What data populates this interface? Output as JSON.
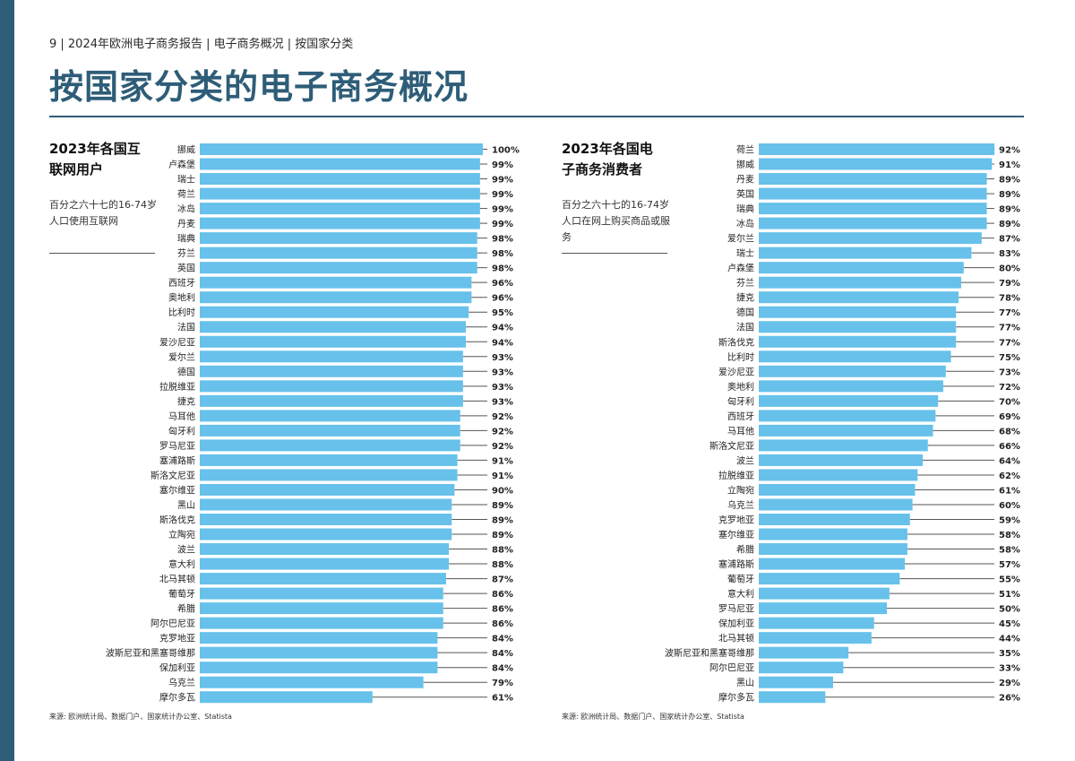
{
  "breadcrumb": "9 | 2024年欧洲电子商务报告 | 电子商务概况 | 按国家分类",
  "title": "按国家分类的电子商务概况",
  "colors": {
    "accent": "#2e5d78",
    "bar": "#67c1ea",
    "leader": "#555555"
  },
  "panels": [
    {
      "heading_line1": "2023年各国互",
      "heading_line2": "联网用户",
      "description": "百分之六十七的16-74岁人口使用互联网",
      "source": "来源: 欧洲统计局、数据门户、国家统计办公室、Statista"
    },
    {
      "heading_line1": "2023年各国电",
      "heading_line2": "子商务消费者",
      "description": "百分之六十七的16-74岁人口在网上购买商品或服务",
      "source": "来源: 欧洲统计局、数据门户、国家统计办公室、Statista"
    }
  ],
  "chart_data": [
    {
      "type": "bar",
      "orientation": "horizontal",
      "title": "2023年各国互联网用户",
      "value_suffix": "%",
      "xlim": [
        0,
        100
      ],
      "categories": [
        "挪威",
        "卢森堡",
        "瑞士",
        "荷兰",
        "冰岛",
        "丹麦",
        "瑞典",
        "芬兰",
        "英国",
        "西班牙",
        "奥地利",
        "比利时",
        "法国",
        "爱沙尼亚",
        "爱尔兰",
        "德国",
        "拉脱维亚",
        "捷克",
        "马耳他",
        "匈牙利",
        "罗马尼亚",
        "塞浦路斯",
        "斯洛文尼亚",
        "塞尔维亚",
        "黑山",
        "斯洛伐克",
        "立陶宛",
        "波兰",
        "意大利",
        "北马其顿",
        "葡萄牙",
        "希腊",
        "阿尔巴尼亚",
        "克罗地亚",
        "波斯尼亚和黑塞哥维那",
        "保加利亚",
        "乌克兰",
        "摩尔多瓦"
      ],
      "values": [
        100,
        99,
        99,
        99,
        99,
        99,
        98,
        98,
        98,
        96,
        96,
        95,
        94,
        94,
        93,
        93,
        93,
        93,
        92,
        92,
        92,
        91,
        91,
        90,
        89,
        89,
        89,
        88,
        88,
        87,
        86,
        86,
        86,
        84,
        84,
        84,
        79,
        61
      ]
    },
    {
      "type": "bar",
      "orientation": "horizontal",
      "title": "2023年各国电子商务消费者",
      "value_suffix": "%",
      "xlim": [
        0,
        100
      ],
      "categories": [
        "荷兰",
        "挪威",
        "丹麦",
        "英国",
        "瑞典",
        "冰岛",
        "爱尔兰",
        "瑞士",
        "卢森堡",
        "芬兰",
        "捷克",
        "德国",
        "法国",
        "斯洛伐克",
        "比利时",
        "爱沙尼亚",
        "奥地利",
        "匈牙利",
        "西班牙",
        "马耳他",
        "斯洛文尼亚",
        "波兰",
        "拉脱维亚",
        "立陶宛",
        "乌克兰",
        "克罗地亚",
        "塞尔维亚",
        "希腊",
        "塞浦路斯",
        "葡萄牙",
        "意大利",
        "罗马尼亚",
        "保加利亚",
        "北马其顿",
        "波斯尼亚和黑塞哥维那",
        "阿尔巴尼亚",
        "黑山",
        "摩尔多瓦"
      ],
      "values": [
        92,
        91,
        89,
        89,
        89,
        89,
        87,
        83,
        80,
        79,
        78,
        77,
        77,
        77,
        75,
        73,
        72,
        70,
        69,
        68,
        66,
        64,
        62,
        61,
        60,
        59,
        58,
        58,
        57,
        55,
        51,
        50,
        45,
        44,
        35,
        33,
        29,
        26
      ]
    }
  ]
}
